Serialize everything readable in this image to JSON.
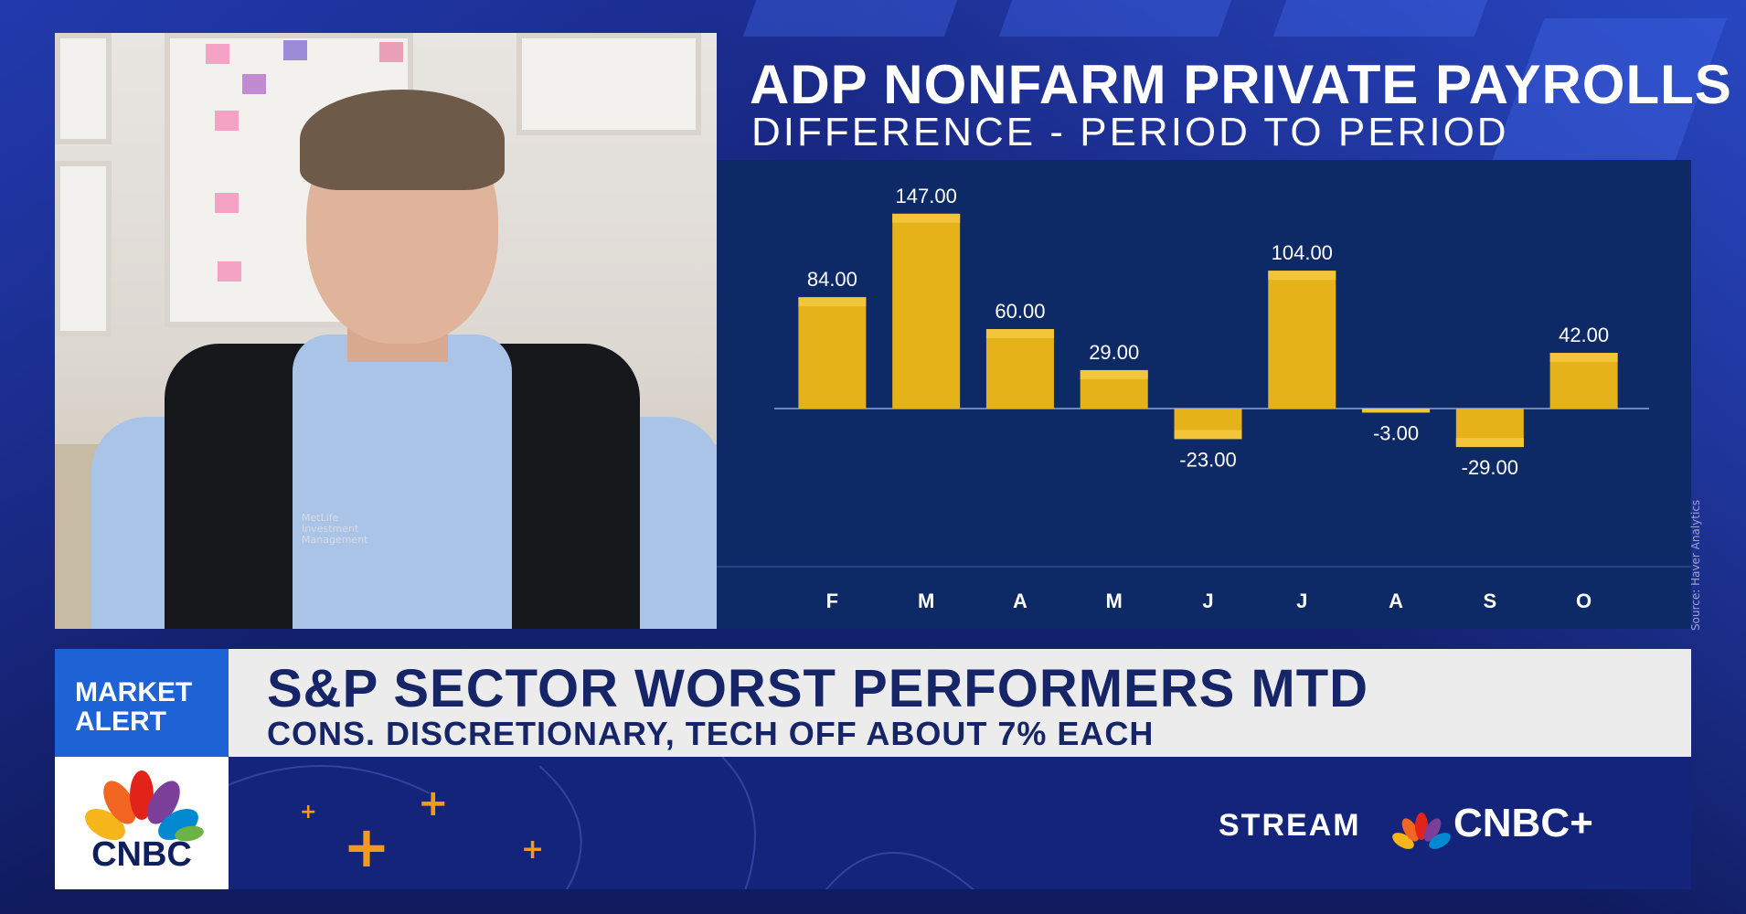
{
  "chart_data": {
    "type": "bar",
    "title": "ADP NONFARM PRIVATE PAYROLLS",
    "subtitle": "DIFFERENCE - PERIOD TO PERIOD",
    "categories": [
      "F",
      "M",
      "A",
      "M",
      "J",
      "J",
      "A",
      "S",
      "O"
    ],
    "values": [
      84,
      147,
      60,
      29,
      -23,
      104,
      -3,
      -29,
      42
    ],
    "data_labels": [
      "84.00",
      "147.00",
      "60.00",
      "29.00",
      "-23.00",
      "104.00",
      "-3.00",
      "-29.00",
      "42.00"
    ],
    "ylim": [
      -40,
      160
    ],
    "grid": false,
    "bar_color": "#e6b21a",
    "bar_top_color": "#f2c53a",
    "source": "Source: Haver Analytics"
  },
  "video": {
    "vest_logo_line1": "MetLife",
    "vest_logo_line2": "Investment",
    "vest_logo_line3": "Management"
  },
  "lower_third": {
    "alert_label_line1": "MARKET",
    "alert_label_line2": "ALERT",
    "headline": "S&P SECTOR WORST PERFORMERS MTD",
    "subheadline": "CONS. DISCRETIONARY, TECH OFF ABOUT 7% EACH",
    "network": "CNBC",
    "stream_label": "STREAM",
    "cnbc_plus": "CNBC+"
  },
  "colors": {
    "accent_blue": "#1d63d6",
    "navy": "#152567",
    "orange": "#f39a1b"
  }
}
